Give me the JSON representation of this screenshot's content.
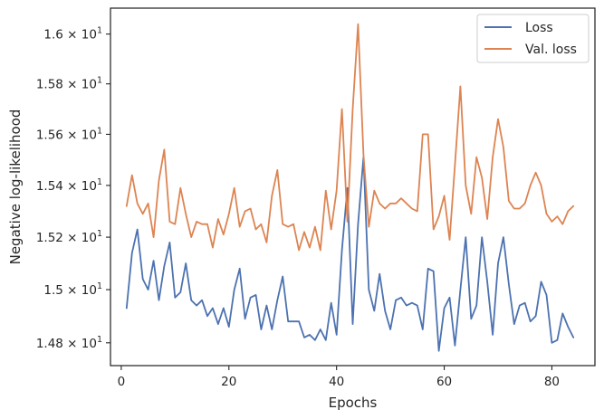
{
  "chart_data": {
    "type": "line",
    "xlabel": "Epochs",
    "ylabel": "Negative log-likelihood",
    "xlim": [
      -2,
      88
    ],
    "ylim": [
      14.715,
      16.105
    ],
    "y_scale": "log",
    "grid": false,
    "legend_position": "top-right",
    "x_ticks": [
      0,
      20,
      40,
      60,
      80
    ],
    "x_tick_labels": [
      "0",
      "20",
      "40",
      "60",
      "80"
    ],
    "y_ticks": [
      14.8,
      15.0,
      15.2,
      15.4,
      15.6,
      15.8,
      16.0
    ],
    "y_tick_labels": [
      {
        "mantissa": "1.48",
        "exp": "1"
      },
      {
        "mantissa": "1.5",
        "exp": "1"
      },
      {
        "mantissa": "1.52",
        "exp": "1"
      },
      {
        "mantissa": "1.54",
        "exp": "1"
      },
      {
        "mantissa": "1.56",
        "exp": "1"
      },
      {
        "mantissa": "1.58",
        "exp": "1"
      },
      {
        "mantissa": "1.6",
        "exp": "1"
      }
    ],
    "x": [
      1,
      2,
      3,
      4,
      5,
      6,
      7,
      8,
      9,
      10,
      11,
      12,
      13,
      14,
      15,
      16,
      17,
      18,
      19,
      20,
      21,
      22,
      23,
      24,
      25,
      26,
      27,
      28,
      29,
      30,
      31,
      32,
      33,
      34,
      35,
      36,
      37,
      38,
      39,
      40,
      41,
      42,
      43,
      44,
      45,
      46,
      47,
      48,
      49,
      50,
      51,
      52,
      53,
      54,
      55,
      56,
      57,
      58,
      59,
      60,
      61,
      62,
      63,
      64,
      65,
      66,
      67,
      68,
      69,
      70,
      71,
      72,
      73,
      74,
      75,
      76,
      77,
      78,
      79,
      80,
      81,
      82,
      83,
      84
    ],
    "series": [
      {
        "name": "Loss",
        "color": "#4c72b0",
        "values": [
          14.93,
          15.14,
          15.23,
          15.04,
          15.0,
          15.11,
          14.96,
          15.09,
          15.18,
          14.97,
          14.99,
          15.1,
          14.96,
          14.94,
          14.96,
          14.9,
          14.93,
          14.87,
          14.93,
          14.86,
          15.0,
          15.08,
          14.89,
          14.97,
          14.98,
          14.85,
          14.94,
          14.85,
          14.96,
          15.05,
          14.88,
          14.88,
          14.88,
          14.82,
          14.83,
          14.81,
          14.85,
          14.81,
          14.95,
          14.83,
          15.15,
          15.39,
          14.87,
          15.25,
          15.51,
          15.0,
          14.92,
          15.06,
          14.92,
          14.85,
          14.96,
          14.97,
          14.94,
          14.95,
          14.94,
          14.85,
          15.08,
          15.07,
          14.77,
          14.93,
          14.97,
          14.79,
          15.0,
          15.2,
          14.89,
          14.94,
          15.2,
          15.03,
          14.83,
          15.1,
          15.2,
          15.02,
          14.87,
          14.94,
          14.95,
          14.88,
          14.9,
          15.03,
          14.98,
          14.8,
          14.81,
          14.91,
          14.86,
          14.82
        ]
      },
      {
        "name": "Val. loss",
        "color": "#dd8452",
        "values": [
          15.32,
          15.44,
          15.33,
          15.29,
          15.33,
          15.2,
          15.42,
          15.54,
          15.26,
          15.25,
          15.39,
          15.29,
          15.2,
          15.26,
          15.25,
          15.25,
          15.16,
          15.27,
          15.21,
          15.29,
          15.39,
          15.24,
          15.3,
          15.31,
          15.23,
          15.25,
          15.18,
          15.36,
          15.46,
          15.25,
          15.24,
          15.25,
          15.15,
          15.22,
          15.16,
          15.24,
          15.15,
          15.38,
          15.23,
          15.38,
          15.7,
          15.26,
          15.7,
          16.04,
          15.52,
          15.24,
          15.38,
          15.33,
          15.31,
          15.33,
          15.33,
          15.35,
          15.33,
          15.31,
          15.3,
          15.6,
          15.6,
          15.23,
          15.28,
          15.36,
          15.19,
          15.48,
          15.79,
          15.4,
          15.29,
          15.51,
          15.43,
          15.27,
          15.51,
          15.66,
          15.55,
          15.34,
          15.31,
          15.31,
          15.33,
          15.4,
          15.45,
          15.4,
          15.29,
          15.26,
          15.28,
          15.25,
          15.3,
          15.32
        ]
      }
    ]
  }
}
